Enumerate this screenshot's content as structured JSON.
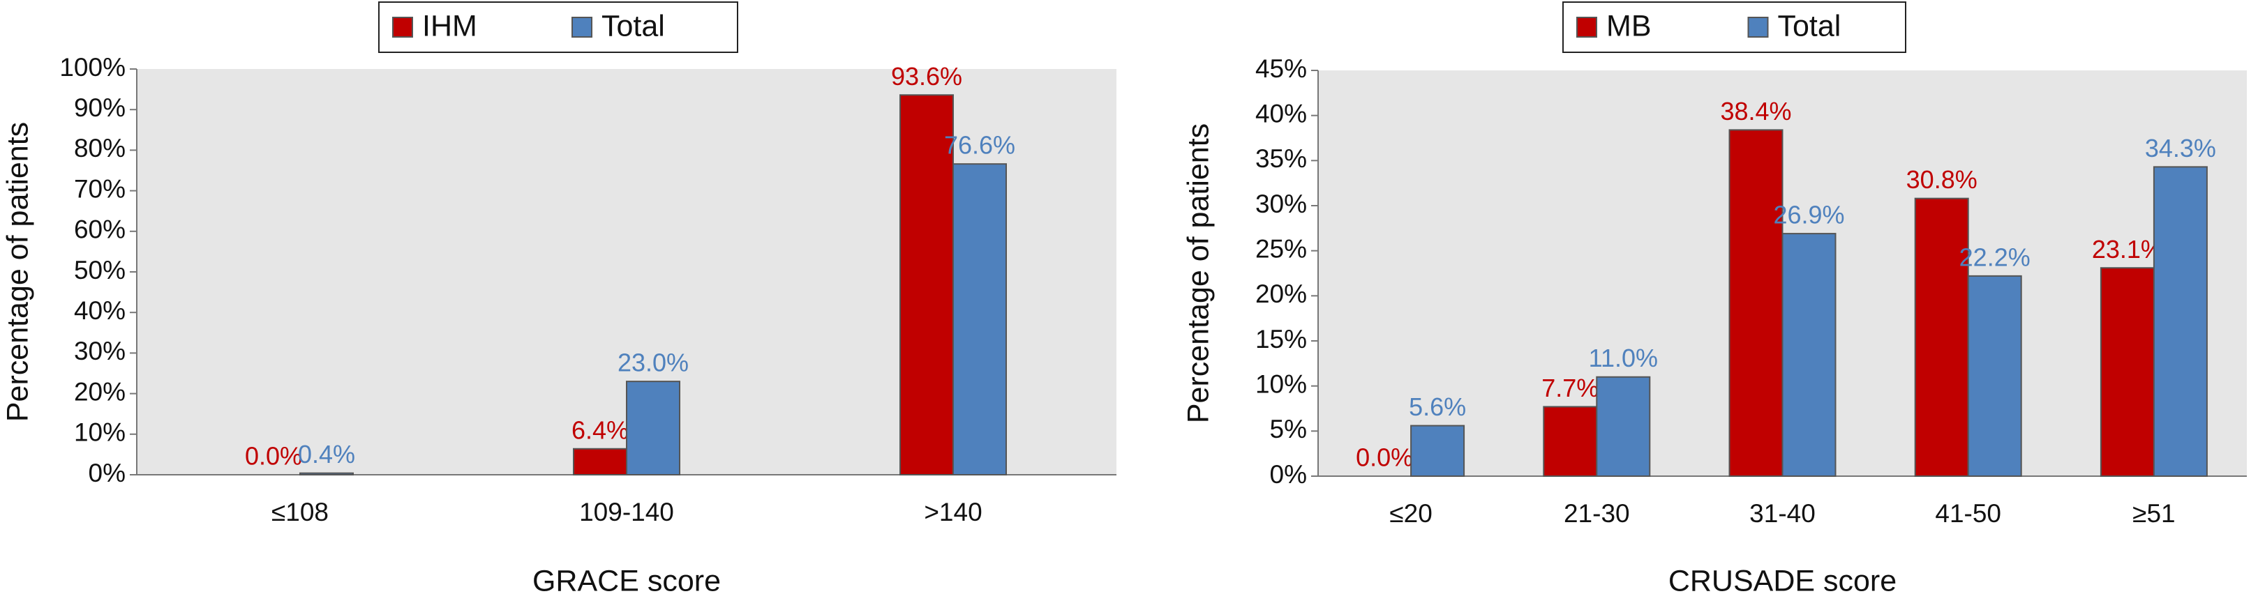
{
  "chart_data": [
    {
      "type": "bar",
      "x_label": "GRACE score",
      "y_label": "Percentage of patients",
      "categories": [
        "≤108",
        "109-140",
        ">140"
      ],
      "series": [
        {
          "name": "IHM",
          "color": "#c00000",
          "values": [
            0.0,
            6.4,
            93.6
          ],
          "value_labels": [
            "0.0%",
            "6.4%",
            "93.6%"
          ]
        },
        {
          "name": "Total",
          "color": "#4f81bd",
          "values": [
            0.4,
            23.0,
            76.6
          ],
          "value_labels": [
            "0.4%",
            "23.0%",
            "76.6%"
          ]
        }
      ],
      "ylim": [
        0,
        100
      ],
      "yticks": [
        {
          "value": 0,
          "label": "0%"
        },
        {
          "value": 10,
          "label": "10%"
        },
        {
          "value": 20,
          "label": "20%"
        },
        {
          "value": 30,
          "label": "30%"
        },
        {
          "value": 40,
          "label": "40%"
        },
        {
          "value": 50,
          "label": "50%"
        },
        {
          "value": 60,
          "label": "60%"
        },
        {
          "value": 70,
          "label": "70%"
        },
        {
          "value": 80,
          "label": "80%"
        },
        {
          "value": 90,
          "label": "90%"
        },
        {
          "value": 100,
          "label": "100%"
        }
      ],
      "grid": false,
      "legend": "top"
    },
    {
      "type": "bar",
      "x_label": "CRUSADE score",
      "y_label": "Percentage of patients",
      "categories": [
        "≤20",
        "21-30",
        "31-40",
        "41-50",
        "≥51"
      ],
      "series": [
        {
          "name": "MB",
          "color": "#c00000",
          "values": [
            0.0,
            7.7,
            38.4,
            30.8,
            23.1
          ],
          "value_labels": [
            "0.0%",
            "7.7%",
            "38.4%",
            "30.8%",
            "23.1%"
          ]
        },
        {
          "name": "Total",
          "color": "#4f81bd",
          "values": [
            5.6,
            11.0,
            26.9,
            22.2,
            34.3
          ],
          "value_labels": [
            "5.6%",
            "11.0%",
            "26.9%",
            "22.2%",
            "34.3%"
          ]
        }
      ],
      "ylim": [
        0,
        45
      ],
      "yticks": [
        {
          "value": 0,
          "label": "0%"
        },
        {
          "value": 5,
          "label": "5%"
        },
        {
          "value": 10,
          "label": "10%"
        },
        {
          "value": 15,
          "label": "15%"
        },
        {
          "value": 20,
          "label": "20%"
        },
        {
          "value": 25,
          "label": "25%"
        },
        {
          "value": 30,
          "label": "30%"
        },
        {
          "value": 35,
          "label": "35%"
        },
        {
          "value": 40,
          "label": "40%"
        },
        {
          "value": 45,
          "label": "45%"
        }
      ],
      "grid": false,
      "legend": "top"
    }
  ]
}
